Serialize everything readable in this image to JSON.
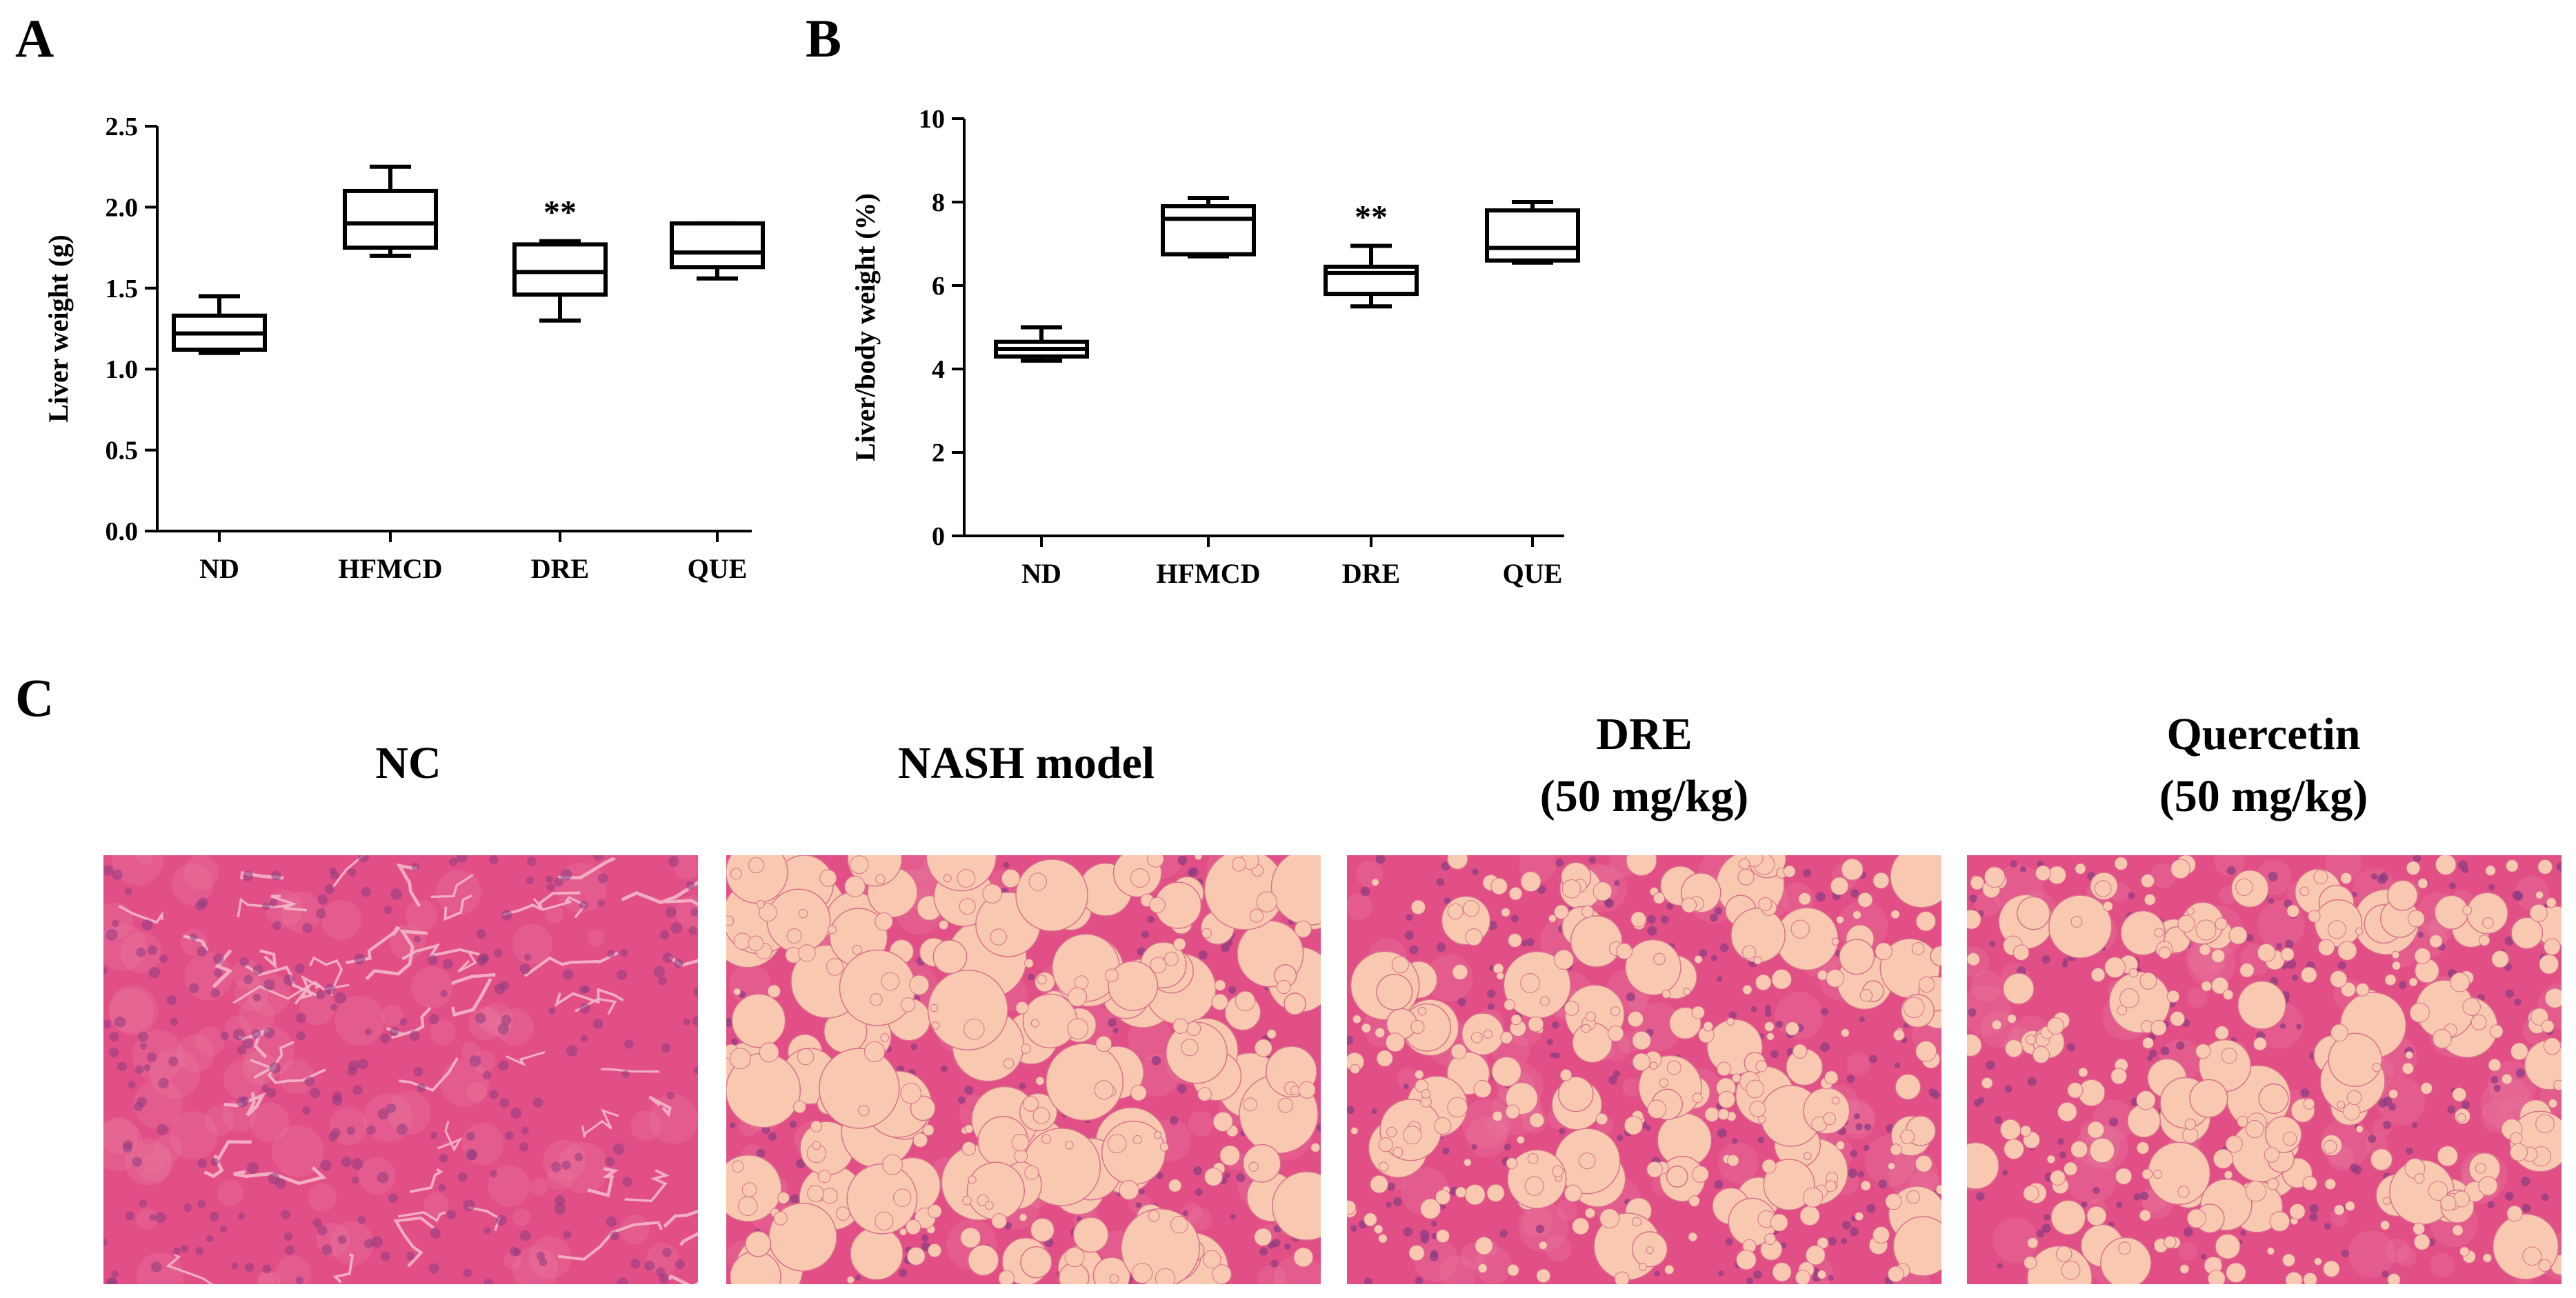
{
  "panels": {
    "a": "A",
    "b": "B",
    "c": "C"
  },
  "chart_data": [
    {
      "type": "box",
      "panel": "A",
      "ylabel": "Liver weight (g)",
      "xlabel": "",
      "ylim": [
        0,
        2.5
      ],
      "yticks": [
        0.0,
        0.5,
        1.0,
        1.5,
        2.0,
        2.5
      ],
      "ytick_labels": [
        "0.0",
        "0.5",
        "1.0",
        "1.5",
        "2.0",
        "2.5"
      ],
      "categories": [
        "ND",
        "HFMCD",
        "DRE",
        "QUE"
      ],
      "boxes": [
        {
          "min": 1.1,
          "q1": 1.12,
          "median": 1.22,
          "q3": 1.33,
          "max": 1.45
        },
        {
          "min": 1.7,
          "q1": 1.75,
          "median": 1.9,
          "q3": 2.1,
          "max": 2.25
        },
        {
          "min": 1.3,
          "q1": 1.46,
          "median": 1.6,
          "q3": 1.77,
          "max": 1.79
        },
        {
          "min": 1.56,
          "q1": 1.63,
          "median": 1.72,
          "q3": 1.9,
          "max": 1.9
        }
      ],
      "annotations": [
        {
          "category": "DRE",
          "text": "**"
        }
      ]
    },
    {
      "type": "box",
      "panel": "B",
      "ylabel": "Liver/body weight (%)",
      "xlabel": "",
      "ylim": [
        0,
        10
      ],
      "yticks": [
        0,
        2,
        4,
        6,
        8,
        10
      ],
      "ytick_labels": [
        "0",
        "2",
        "4",
        "6",
        "8",
        "10"
      ],
      "categories": [
        "ND",
        "HFMCD",
        "DRE",
        "QUE"
      ],
      "boxes": [
        {
          "min": 4.2,
          "q1": 4.3,
          "median": 4.48,
          "q3": 4.65,
          "max": 5.0
        },
        {
          "min": 6.7,
          "q1": 6.75,
          "median": 7.6,
          "q3": 7.9,
          "max": 8.1
        },
        {
          "min": 5.5,
          "q1": 5.8,
          "median": 6.3,
          "q3": 6.45,
          "max": 6.95
        },
        {
          "min": 6.55,
          "q1": 6.6,
          "median": 6.9,
          "q3": 7.8,
          "max": 8.0
        }
      ],
      "annotations": [
        {
          "category": "DRE",
          "text": "**"
        }
      ]
    }
  ],
  "histology": {
    "images": [
      {
        "line1": "NC",
        "line2": "",
        "kind": "normal",
        "seed": 11
      },
      {
        "line1": "NASH model",
        "line2": "",
        "kind": "severe",
        "seed": 23
      },
      {
        "line1": "DRE",
        "line2": "(50 mg/kg)",
        "kind": "moderate",
        "seed": 37
      },
      {
        "line1": "Quercetin",
        "line2": "(50 mg/kg)",
        "kind": "moderate",
        "seed": 53
      }
    ],
    "colors": {
      "tissue": "#E24F86",
      "tissue_light": "#E8769E",
      "vacuole": "#F8C9B0",
      "nucleus": "#8E3C82",
      "crack": "#F3B7C9"
    }
  }
}
